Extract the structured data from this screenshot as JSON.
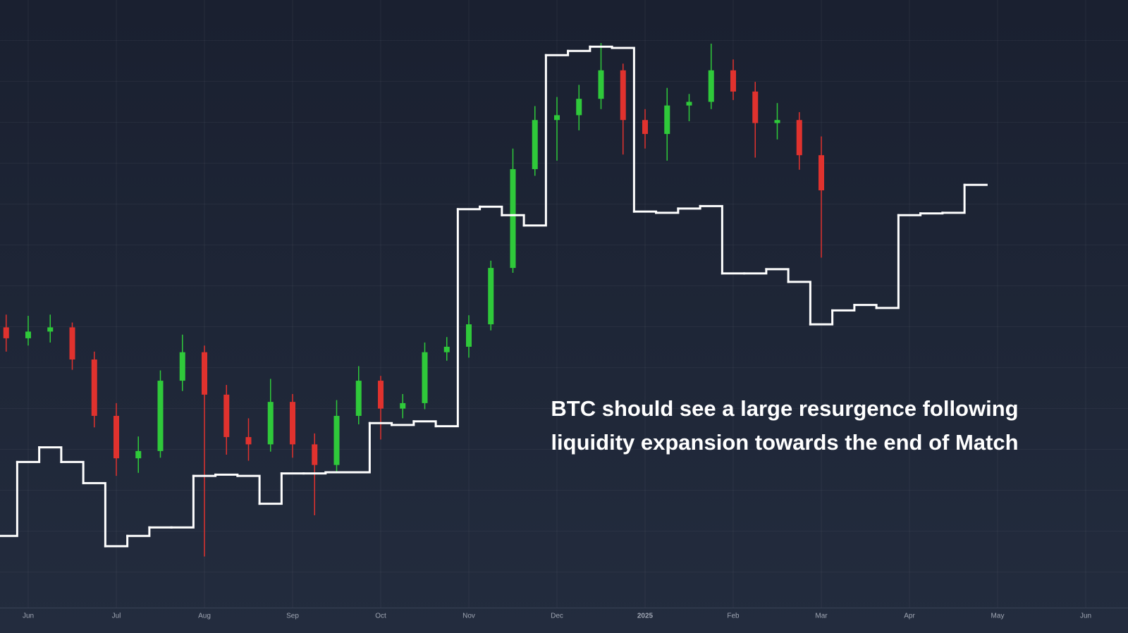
{
  "chart_data": {
    "type": "candlestick",
    "categories": [
      null,
      "Jun",
      null,
      null,
      null,
      "Jul",
      null,
      null,
      null,
      "Aug",
      null,
      null,
      null,
      "Sep",
      null,
      null,
      null,
      "Oct",
      null,
      null,
      null,
      "Nov",
      null,
      null,
      null,
      "Dec",
      null,
      null,
      null,
      "2025",
      null,
      null,
      null,
      "Feb",
      null,
      null,
      null,
      "Mar",
      null,
      null,
      null,
      "Apr",
      null,
      null,
      null,
      "May",
      null,
      null,
      null,
      "Jun"
    ],
    "open": [
      46.0,
      44.2,
      45.3,
      46.0,
      40.7,
      31.4,
      24.4,
      25.6,
      37.2,
      41.9,
      34.9,
      27.9,
      26.7,
      33.7,
      26.7,
      23.3,
      31.4,
      37.2,
      32.6,
      33.5,
      41.9,
      42.8,
      46.5,
      55.8,
      72.1,
      80.2,
      81.0,
      83.7,
      88.4,
      80.2,
      77.9,
      82.6,
      83.2,
      88.4,
      84.9,
      79.7,
      80.2,
      74.4,
      null,
      null,
      null,
      null,
      null,
      null,
      null,
      null,
      null,
      null,
      null,
      null
    ],
    "high": [
      48.1,
      47.9,
      48.1,
      46.8,
      42.0,
      33.5,
      28.0,
      38.9,
      44.8,
      43.0,
      36.5,
      31.0,
      37.5,
      35.0,
      28.5,
      34.0,
      39.6,
      38.0,
      35.0,
      43.5,
      44.4,
      48.0,
      57.0,
      75.5,
      82.5,
      84.0,
      86.0,
      92.9,
      89.5,
      82.0,
      85.5,
      84.5,
      92.8,
      90.2,
      86.5,
      83.0,
      81.5,
      77.5,
      null,
      null,
      null,
      null,
      null,
      null,
      null,
      null,
      null,
      null,
      null,
      null
    ],
    "low": [
      42.0,
      43.0,
      43.5,
      39.0,
      29.5,
      21.5,
      22.0,
      24.5,
      35.5,
      8.2,
      25.0,
      24.0,
      25.5,
      24.5,
      15.0,
      22.0,
      30.0,
      27.5,
      31.0,
      32.5,
      40.5,
      41.0,
      45.5,
      55.0,
      71.0,
      73.5,
      78.5,
      82.0,
      74.5,
      75.5,
      73.5,
      80.0,
      82.0,
      83.5,
      74.0,
      77.0,
      72.0,
      57.5,
      null,
      null,
      null,
      null,
      null,
      null,
      null,
      null,
      null,
      null,
      null,
      null
    ],
    "close": [
      44.2,
      45.3,
      46.0,
      40.7,
      31.4,
      24.4,
      25.6,
      37.2,
      41.9,
      34.9,
      27.9,
      26.7,
      33.7,
      26.7,
      23.3,
      31.4,
      37.2,
      32.6,
      33.5,
      41.9,
      42.8,
      46.5,
      55.8,
      72.1,
      80.2,
      81.0,
      83.7,
      88.4,
      80.2,
      77.9,
      82.6,
      83.2,
      88.4,
      84.9,
      79.7,
      80.2,
      74.4,
      68.6,
      null,
      null,
      null,
      null,
      null,
      null,
      null,
      null,
      null,
      null,
      null,
      null
    ],
    "up_color": "#2fc93a",
    "down_color": "#e0322e",
    "overlay": {
      "type": "step",
      "color": "#ffffff",
      "values": [
        11.6,
        23.8,
        26.2,
        23.8,
        20.3,
        9.9,
        11.6,
        13.0,
        13.0,
        21.5,
        21.7,
        21.5,
        16.9,
        21.9,
        21.9,
        22.1,
        22.1,
        30.2,
        29.9,
        30.5,
        29.7,
        65.5,
        65.9,
        64.5,
        62.8,
        90.9,
        91.6,
        92.3,
        92.1,
        65.1,
        64.9,
        65.6,
        66.0,
        54.9,
        54.9,
        55.6,
        53.5,
        46.5,
        48.8,
        49.7,
        49.2,
        64.5,
        64.8,
        64.9,
        69.5,
        null,
        null,
        null,
        null,
        null
      ]
    },
    "ylim": [
      0,
      100
    ],
    "grid": true,
    "annotation": [
      "BTC should see a large resurgence following",
      "liquidity expansion towards the end of Match"
    ]
  }
}
